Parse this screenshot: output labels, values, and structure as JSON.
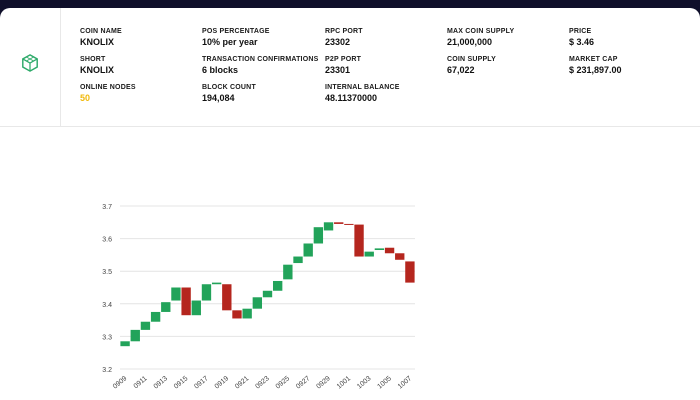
{
  "header": {
    "stats": [
      {
        "label": "COIN NAME",
        "value": "KNOLIX"
      },
      {
        "label": "POS PERCENTAGE",
        "value": "10% per year"
      },
      {
        "label": "RPC PORT",
        "value": "23302"
      },
      {
        "label": "MAX COIN SUPPLY",
        "value": "21,000,000"
      },
      {
        "label": "PRICE",
        "value": "$ 3.46"
      },
      {
        "label": "SHORT",
        "value": "KNOLIX"
      },
      {
        "label": "TRANSACTION CONFIRMATIONS",
        "value": "6 blocks"
      },
      {
        "label": "P2P PORT",
        "value": "23301"
      },
      {
        "label": "COIN SUPPLY",
        "value": "67,022"
      },
      {
        "label": "MARKET CAP",
        "value": "$ 231,897.00"
      },
      {
        "label": "ONLINE NODES",
        "value": "50"
      },
      {
        "label": "BLOCK COUNT",
        "value": "194,084"
      },
      {
        "label": "INTERNAL BALANCE",
        "value": "48.11370000"
      }
    ]
  },
  "colors": {
    "up": "#22a35a",
    "down": "#b5261e",
    "highlight": "#f0b90b",
    "logo": "#2eaa6a"
  },
  "chart_data": {
    "type": "candlestick",
    "ylim": [
      3.2,
      3.7
    ],
    "yticks": [
      3.2,
      3.3,
      3.4,
      3.5,
      3.6,
      3.7
    ],
    "xtick_labels": [
      "0909",
      "0911",
      "0913",
      "0915",
      "0917",
      "0919",
      "0921",
      "0923",
      "0925",
      "0927",
      "0929",
      "1001",
      "1003",
      "1005",
      "1007"
    ],
    "candles": [
      {
        "date": "0909",
        "open": 3.27,
        "close": 3.285
      },
      {
        "date": "0910",
        "open": 3.285,
        "close": 3.32
      },
      {
        "date": "0911",
        "open": 3.32,
        "close": 3.345
      },
      {
        "date": "0912",
        "open": 3.345,
        "close": 3.375
      },
      {
        "date": "0913",
        "open": 3.375,
        "close": 3.405
      },
      {
        "date": "0914",
        "open": 3.41,
        "close": 3.45
      },
      {
        "date": "0915",
        "open": 3.45,
        "close": 3.365
      },
      {
        "date": "0916",
        "open": 3.365,
        "close": 3.41
      },
      {
        "date": "0917",
        "open": 3.41,
        "close": 3.46
      },
      {
        "date": "0918",
        "open": 3.46,
        "close": 3.465
      },
      {
        "date": "0919",
        "open": 3.46,
        "close": 3.38
      },
      {
        "date": "0920",
        "open": 3.38,
        "close": 3.355
      },
      {
        "date": "0921",
        "open": 3.355,
        "close": 3.385
      },
      {
        "date": "0922",
        "open": 3.385,
        "close": 3.42
      },
      {
        "date": "0923",
        "open": 3.42,
        "close": 3.44
      },
      {
        "date": "0924",
        "open": 3.44,
        "close": 3.47
      },
      {
        "date": "0925",
        "open": 3.475,
        "close": 3.52
      },
      {
        "date": "0926",
        "open": 3.525,
        "close": 3.545
      },
      {
        "date": "0927",
        "open": 3.545,
        "close": 3.585
      },
      {
        "date": "0928",
        "open": 3.585,
        "close": 3.635
      },
      {
        "date": "0929",
        "open": 3.625,
        "close": 3.65
      },
      {
        "date": "0930",
        "open": 3.65,
        "close": 3.645
      },
      {
        "date": "1001",
        "open": 3.645,
        "close": 3.643
      },
      {
        "date": "1002",
        "open": 3.643,
        "close": 3.545
      },
      {
        "date": "1003",
        "open": 3.545,
        "close": 3.56
      },
      {
        "date": "1004",
        "open": 3.565,
        "close": 3.57
      },
      {
        "date": "1005",
        "open": 3.572,
        "close": 3.555
      },
      {
        "date": "1006",
        "open": 3.555,
        "close": 3.535
      },
      {
        "date": "1007",
        "open": 3.53,
        "close": 3.465
      }
    ]
  }
}
